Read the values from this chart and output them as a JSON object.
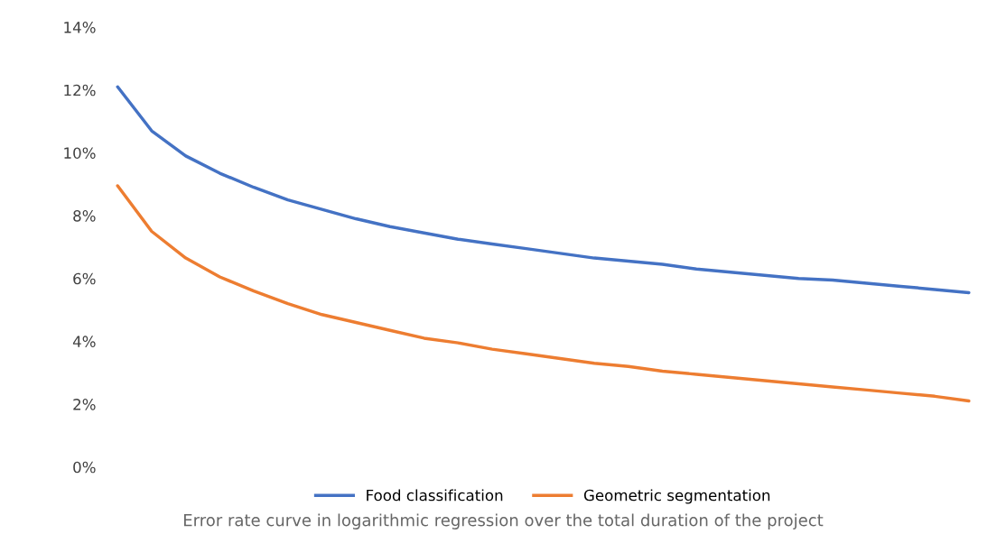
{
  "chart_data": {
    "type": "line",
    "categories": [
      null,
      null,
      null,
      null,
      null,
      null,
      null,
      null,
      null,
      null,
      null,
      null,
      null,
      null,
      null,
      null,
      null,
      null,
      null,
      null,
      null,
      null,
      null,
      null,
      null,
      null
    ],
    "series": [
      {
        "name": "Food classification",
        "color": "#4472c4",
        "values": [
          12.1,
          10.7,
          9.9,
          9.35,
          8.9,
          8.5,
          8.2,
          7.9,
          7.65,
          7.45,
          7.25,
          7.1,
          6.95,
          6.8,
          6.65,
          6.55,
          6.45,
          6.3,
          6.2,
          6.1,
          6.0,
          5.95,
          5.85,
          5.75,
          5.65,
          5.55
        ]
      },
      {
        "name": "Geometric segmentation",
        "color": "#ed7d31",
        "values": [
          8.95,
          7.5,
          6.65,
          6.05,
          5.6,
          5.2,
          4.85,
          4.6,
          4.35,
          4.1,
          3.95,
          3.75,
          3.6,
          3.45,
          3.3,
          3.2,
          3.05,
          2.95,
          2.85,
          2.75,
          2.65,
          2.55,
          2.45,
          2.35,
          2.25,
          2.1
        ]
      }
    ],
    "ylim": [
      0,
      14
    ],
    "yticks": [
      {
        "value": 0,
        "label": "0%"
      },
      {
        "value": 2,
        "label": "2%"
      },
      {
        "value": 4,
        "label": "4%"
      },
      {
        "value": 6,
        "label": "6%"
      },
      {
        "value": 8,
        "label": "8%"
      },
      {
        "value": 10,
        "label": "10%"
      },
      {
        "value": 12,
        "label": "12%"
      },
      {
        "value": 14,
        "label": "14%"
      }
    ],
    "legend": "bottom",
    "annotations": [
      "Error rate curve in logarithmic regression over the total duration of the project"
    ]
  }
}
